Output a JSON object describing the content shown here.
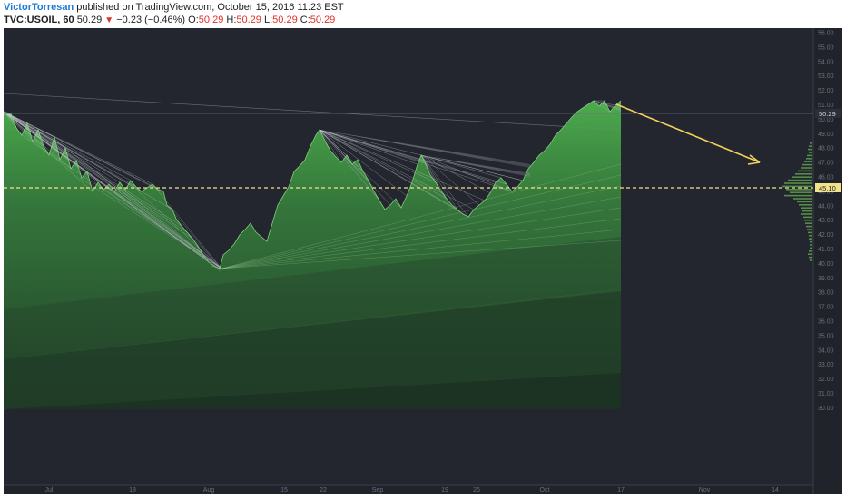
{
  "header": {
    "author": "VictorTorresan",
    "published_text": "published on TradingView.com, October 15, 2016 11:23 EST",
    "symbol": "TVC:USOIL, 60",
    "last": "50.29",
    "change": "−0.23 (−0.46%)",
    "open_label": "O:",
    "open": "50.29",
    "high_label": "H:",
    "high": "50.29",
    "low_label": "L:",
    "low": "50.29",
    "close_label": "C:",
    "close": "50.29"
  },
  "chart_data": {
    "type": "area",
    "symbol": "TVC:USOIL",
    "interval": "60",
    "x_tick_labels": [
      "Jul",
      "18",
      "Aug",
      "15",
      "22",
      "Sep",
      "19",
      "26",
      "Oct",
      "17",
      "Nov",
      "14"
    ],
    "y_tick_labels": [
      "56.00",
      "55.00",
      "54.00",
      "53.00",
      "52.00",
      "51.00",
      "50.00",
      "49.00",
      "48.00",
      "47.00",
      "46.00",
      "45.00",
      "44.00",
      "43.00",
      "42.00",
      "41.00",
      "40.00",
      "39.00",
      "38.00",
      "37.00",
      "36.00",
      "35.00",
      "34.00",
      "33.00",
      "32.00",
      "31.00",
      "30.00"
    ],
    "price_labels": {
      "last": "50.29",
      "marked_level": "45.10"
    },
    "marked_level": 45.1,
    "projection": "down-right",
    "colors": {
      "background": "#22252d",
      "area": "#3f9a45",
      "fan_lines": "#b9b9c2",
      "marker_line": "#f2e38a",
      "arrow": "#f3d15c",
      "volume_profile": "#5f9f4e"
    }
  }
}
